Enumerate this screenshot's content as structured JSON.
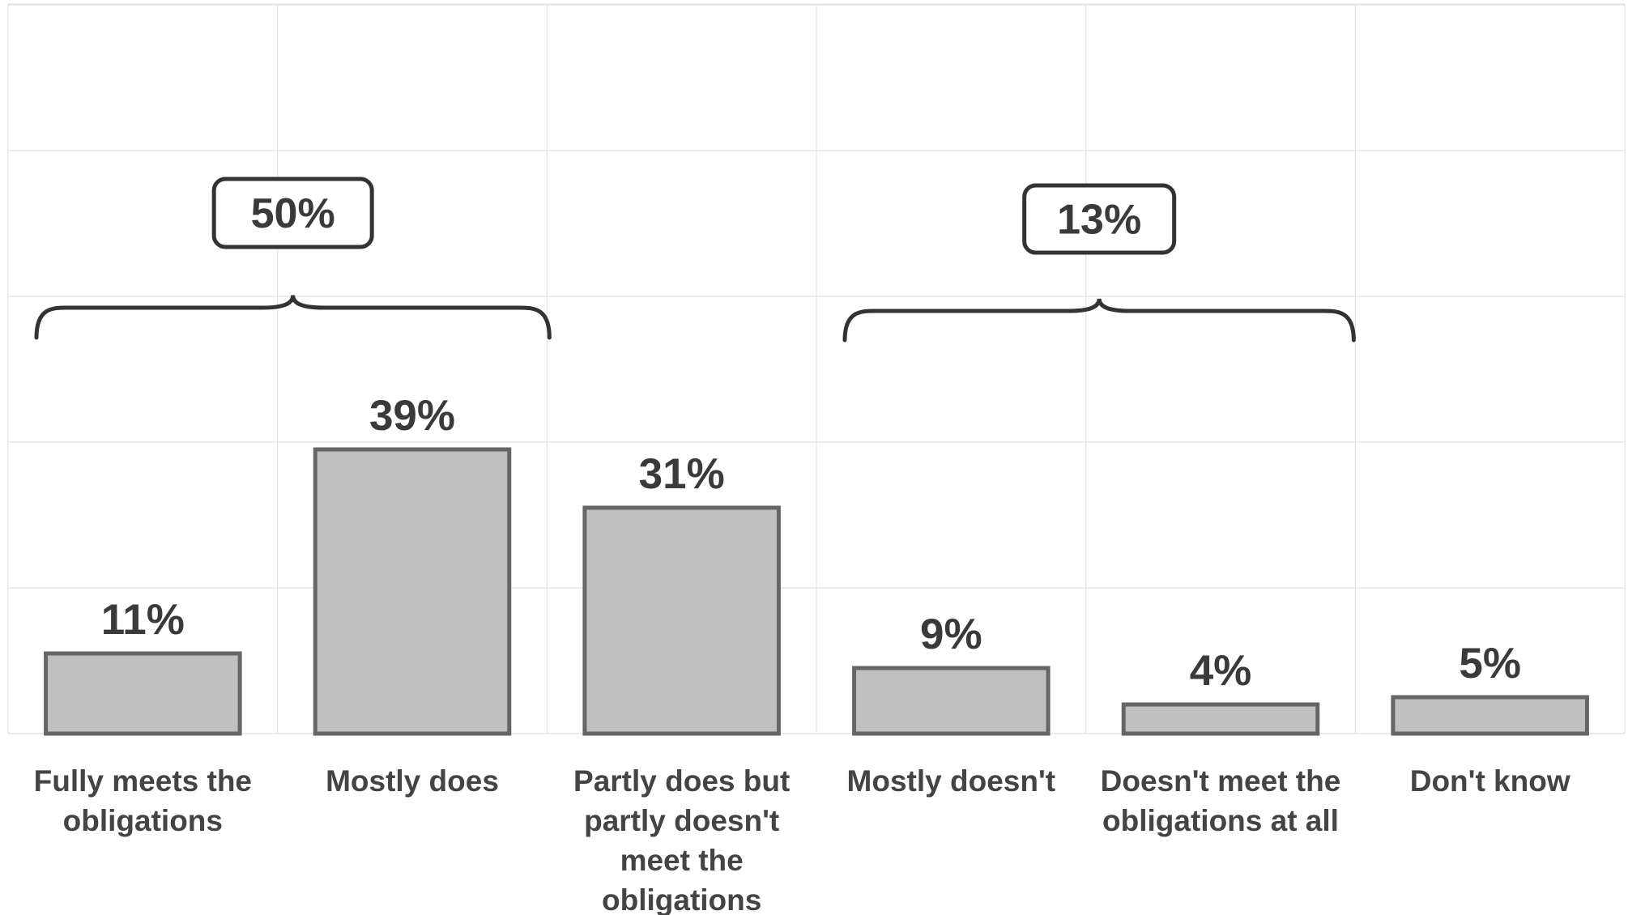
{
  "chart_data": {
    "type": "bar",
    "categories": [
      "Fully meets the obligations",
      "Mostly does",
      "Partly does but partly doesn't meet the obligations",
      "Mostly doesn't",
      "Doesn't meet the obligations at all",
      "Don't know"
    ],
    "category_label_lines": [
      [
        "Fully meets the",
        "obligations"
      ],
      [
        "Mostly does"
      ],
      [
        "Partly does but",
        "partly doesn't",
        "meet the",
        "obligations"
      ],
      [
        "Mostly doesn't"
      ],
      [
        "Doesn't meet the",
        "obligations at all"
      ],
      [
        "Don't know"
      ]
    ],
    "values": [
      11,
      39,
      31,
      9,
      4,
      5
    ],
    "value_labels": [
      "11%",
      "39%",
      "31%",
      "9%",
      "4%",
      "5%"
    ],
    "value_unit": "%",
    "ylim": [
      0,
      100
    ],
    "grid": true,
    "legend": "none",
    "bar_color": "#c0c0c0",
    "bar_edge_color": "#666666",
    "groups": [
      {
        "label": "50%",
        "value": 50,
        "categories": [
          0,
          1
        ]
      },
      {
        "label": "13%",
        "value": 13,
        "categories": [
          3,
          4
        ]
      }
    ],
    "title": "",
    "xlabel": "",
    "ylabel": ""
  }
}
